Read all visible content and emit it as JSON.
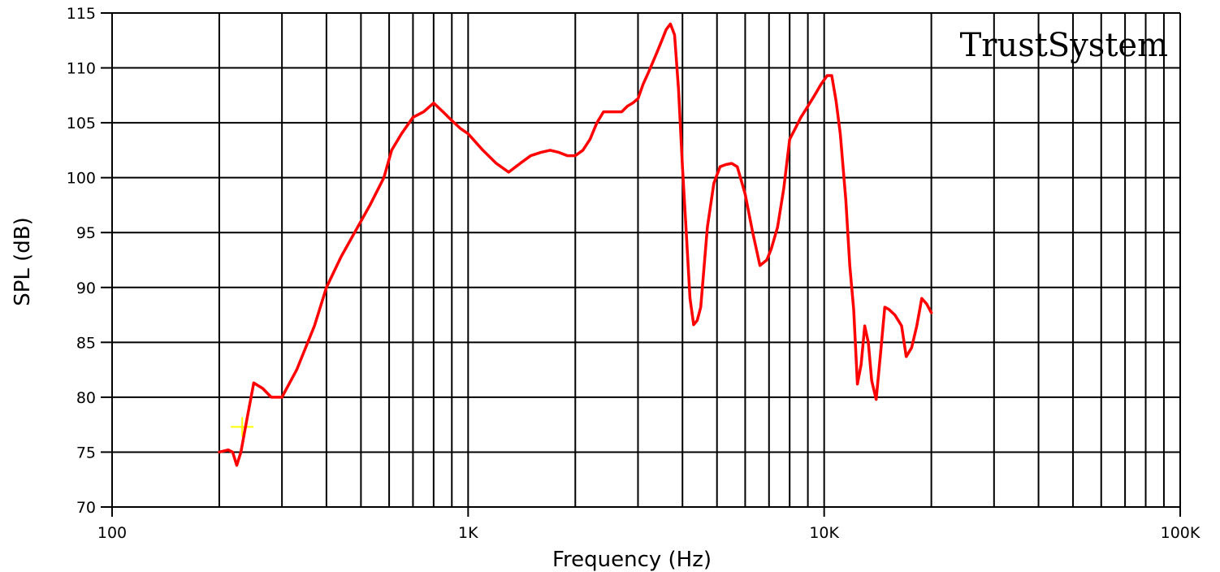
{
  "chart_data": {
    "type": "line",
    "title": "",
    "watermark": "TrustSystem",
    "xlabel": "Frequency (Hz)",
    "ylabel": "SPL (dB)",
    "xscale": "log",
    "xlim": [
      100,
      100000
    ],
    "ylim": [
      70,
      115
    ],
    "grid": true,
    "x_tick_labels": [
      {
        "value": 100,
        "label": "100"
      },
      {
        "value": 1000,
        "label": "1K"
      },
      {
        "value": 10000,
        "label": "10K"
      },
      {
        "value": 100000,
        "label": "100K"
      }
    ],
    "y_ticks": [
      70,
      75,
      80,
      85,
      90,
      95,
      100,
      105,
      110,
      115
    ],
    "colors": {
      "series": "#ff0000",
      "marker": "#ffff00",
      "grid": "#000000"
    },
    "series": [
      {
        "x": [
          200,
          212,
          218,
          224,
          230,
          236,
          250,
          265,
          280,
          300,
          330,
          370,
          400,
          440,
          480,
          530,
          580,
          610,
          650,
          700,
          750,
          800,
          850,
          900,
          950,
          1000,
          1100,
          1200,
          1300,
          1400,
          1500,
          1600,
          1700,
          1800,
          1900,
          2000,
          2100,
          2200,
          2300,
          2400,
          2500,
          2600,
          2700,
          2800,
          2900,
          3000,
          3100,
          3200,
          3300,
          3400,
          3500,
          3600,
          3700,
          3800,
          3900,
          4000,
          4100,
          4200,
          4300,
          4400,
          4500,
          4700,
          4900,
          5100,
          5300,
          5500,
          5700,
          6000,
          6300,
          6600,
          6900,
          7100,
          7400,
          7700,
          8000,
          8300,
          8600,
          9000,
          9400,
          9800,
          10200,
          10500,
          10800,
          11100,
          11500,
          11800,
          12100,
          12400,
          12700,
          13000,
          13300,
          13600,
          14000,
          14400,
          14800,
          15200,
          15800,
          16500,
          17000,
          17600,
          18200,
          18800,
          19400,
          20000
        ],
        "y": [
          75,
          75.2,
          75,
          73.8,
          75,
          77,
          81.3,
          80.8,
          80,
          80,
          82.5,
          86.5,
          90,
          92.8,
          95,
          97.5,
          100,
          102.5,
          104,
          105.5,
          106,
          106.8,
          106,
          105.2,
          104.5,
          104,
          102.5,
          101.3,
          100.5,
          101.3,
          102,
          102.3,
          102.5,
          102.3,
          102,
          102,
          102.5,
          103.5,
          105,
          106,
          106,
          106,
          106,
          106.5,
          106.8,
          107.2,
          108.5,
          109.5,
          110.5,
          111.5,
          112.5,
          113.5,
          114,
          113,
          108,
          101,
          95,
          89,
          86.6,
          87,
          88.2,
          95.5,
          99.5,
          101,
          101.2,
          101.3,
          101,
          98.5,
          95,
          92,
          92.5,
          93.5,
          95.5,
          99,
          103.5,
          104.5,
          105.5,
          106.5,
          107.5,
          108.5,
          109.3,
          109.3,
          107,
          104,
          98,
          92,
          88,
          81.2,
          83,
          86.5,
          85,
          81.5,
          79.8,
          84,
          88.2,
          88,
          87.5,
          86.5,
          83.7,
          84.5,
          86.5,
          89,
          88.5,
          87.7
        ]
      }
    ],
    "marker_point": {
      "x": 232,
      "y": 77.3
    }
  }
}
